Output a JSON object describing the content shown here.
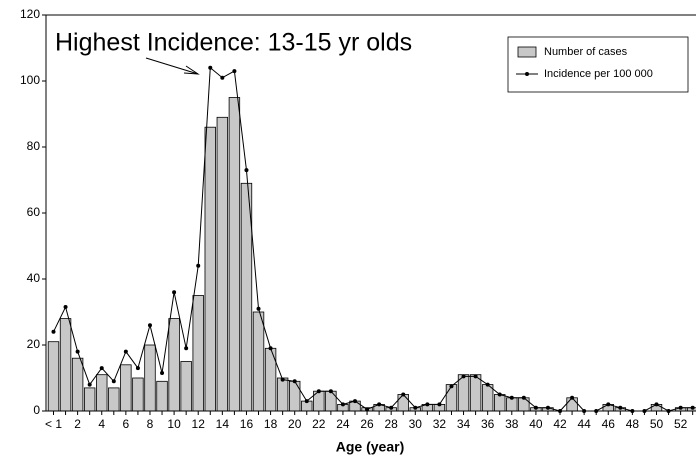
{
  "chart_data": {
    "type": "combo",
    "annotation": "Highest Incidence: 13-15 yr olds",
    "x_label": "Age (year)",
    "categories": [
      "< 1",
      null,
      "2",
      null,
      "4",
      null,
      "6",
      null,
      "8",
      null,
      "10",
      null,
      "12",
      null,
      "14",
      null,
      "16",
      null,
      "18",
      null,
      "20",
      null,
      "22",
      null,
      "24",
      null,
      "26",
      null,
      "28",
      null,
      "30",
      null,
      "32",
      null,
      "34",
      null,
      "36",
      null,
      "38",
      null,
      "40",
      null,
      "42",
      null,
      "44",
      null,
      "46",
      null,
      "48",
      null,
      "50",
      null,
      "52",
      null
    ],
    "series": [
      {
        "name": "Number of cases",
        "type": "bar",
        "color": "#c8c8c8",
        "values": [
          21,
          28,
          16,
          7,
          11,
          7,
          14,
          10,
          20,
          9,
          28,
          15,
          35,
          86,
          89,
          95,
          69,
          30,
          19,
          10,
          9,
          3,
          6,
          6,
          2,
          3,
          1,
          2,
          1,
          5,
          1,
          2,
          2,
          8,
          11,
          11,
          8,
          5,
          4,
          4,
          1,
          1,
          0,
          4,
          0,
          0,
          2,
          1,
          0,
          0,
          2,
          0,
          1,
          1
        ]
      },
      {
        "name": "Incidence per 100 000",
        "type": "line",
        "color": "#000000",
        "values": [
          24,
          31.5,
          18,
          8,
          13,
          9,
          18,
          13,
          26,
          11.5,
          36,
          19,
          44,
          104,
          101,
          103,
          73,
          31,
          19,
          9.5,
          9,
          3,
          6,
          6,
          2,
          3,
          0.5,
          2,
          1,
          5,
          1,
          2,
          2,
          7.5,
          10.5,
          10.5,
          8,
          5,
          4,
          4,
          1,
          1,
          0,
          4,
          0,
          0,
          2,
          1,
          0,
          0,
          2,
          0,
          1,
          1
        ]
      }
    ],
    "ylim": [
      0,
      120
    ],
    "yticks": [
      0,
      20,
      40,
      60,
      80,
      100,
      120
    ],
    "legend": "upper right"
  }
}
